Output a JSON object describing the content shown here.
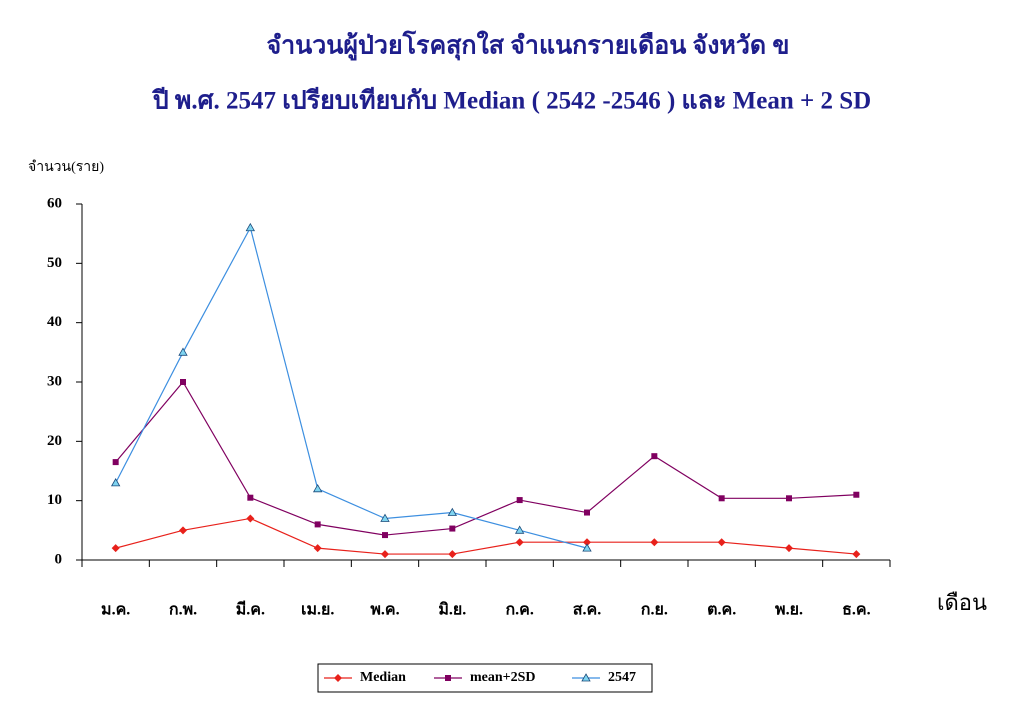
{
  "chart_data": {
    "type": "line",
    "title": "จำนวนผู้ป่วยโรคสุกใส จำแนกรายเดือน จังหวัด ข",
    "subtitle": "ปี  พ.ศ.  2547   เปรียบเทียบกับ  Median ( 2542 -2546 ) และ Mean + 2 SD",
    "y_label": "จำนวน(ราย)",
    "x_label": "เดือน",
    "categories": [
      "ม.ค.",
      "ก.พ.",
      "มี.ค.",
      "เม.ย.",
      "พ.ค.",
      "มิ.ย.",
      "ก.ค.",
      "ส.ค.",
      "ก.ย.",
      "ต.ค.",
      "พ.ย.",
      "ธ.ค."
    ],
    "series": [
      {
        "name": "Median",
        "color": "#e8211b",
        "marker": "diamond",
        "values": [
          2,
          5,
          7,
          2,
          1,
          1,
          3,
          3,
          3,
          3,
          2,
          1
        ]
      },
      {
        "name": "mean+2SD",
        "color": "#800060",
        "marker": "square",
        "values": [
          16.5,
          30,
          10.5,
          6,
          4.2,
          5.3,
          10.1,
          8,
          17.5,
          10.4,
          10.4,
          11
        ]
      },
      {
        "name": "2547",
        "color": "#3d8fe0",
        "marker": "triangle",
        "values": [
          13,
          35,
          56,
          12,
          7,
          8,
          5,
          2,
          null,
          null,
          null,
          null
        ]
      }
    ],
    "ylim": [
      0,
      60
    ],
    "yticks": [
      0,
      10,
      20,
      30,
      40,
      50,
      60
    ],
    "grid": false,
    "legend": "bottom"
  }
}
